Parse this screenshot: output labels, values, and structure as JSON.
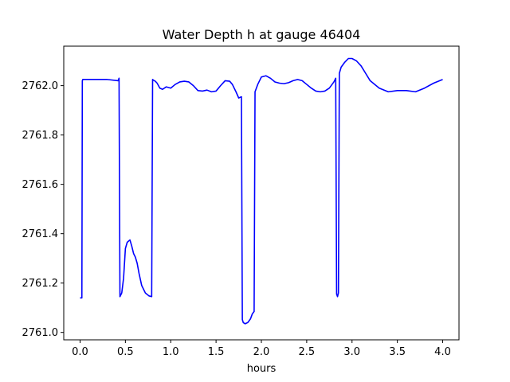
{
  "chart_data": {
    "type": "line",
    "title": "Water Depth h at gauge 46404",
    "xlabel": "hours",
    "ylabel": "",
    "xlim": [
      -0.18,
      4.18
    ],
    "ylim": [
      2760.97,
      2762.16
    ],
    "xticks": [
      0.0,
      0.5,
      1.0,
      1.5,
      2.0,
      2.5,
      3.0,
      3.5,
      4.0
    ],
    "xtick_labels": [
      "0.0",
      "0.5",
      "1.0",
      "1.5",
      "2.0",
      "2.5",
      "3.0",
      "3.5",
      "4.0"
    ],
    "yticks": [
      2761.0,
      2761.2,
      2761.4,
      2761.6,
      2761.8,
      2762.0
    ],
    "ytick_labels": [
      "2761.0",
      "2761.2",
      "2761.4",
      "2761.6",
      "2761.8",
      "2762.0"
    ],
    "grid": false,
    "legend": "none",
    "series": [
      {
        "color": "#0000ff",
        "x": [
          0.0,
          0.02,
          0.025,
          0.03,
          0.3,
          0.42,
          0.43,
          0.44,
          0.46,
          0.48,
          0.5,
          0.52,
          0.55,
          0.57,
          0.59,
          0.61,
          0.63,
          0.65,
          0.68,
          0.72,
          0.76,
          0.79,
          0.8,
          0.81,
          0.83,
          0.85,
          0.88,
          0.91,
          0.95,
          1.0,
          1.05,
          1.1,
          1.15,
          1.2,
          1.25,
          1.3,
          1.35,
          1.4,
          1.45,
          1.5,
          1.55,
          1.6,
          1.65,
          1.68,
          1.72,
          1.75,
          1.78,
          1.79,
          1.8,
          1.82,
          1.85,
          1.88,
          1.9,
          1.92,
          1.93,
          1.96,
          2.0,
          2.05,
          2.1,
          2.15,
          2.2,
          2.25,
          2.3,
          2.35,
          2.4,
          2.45,
          2.5,
          2.55,
          2.6,
          2.65,
          2.7,
          2.75,
          2.8,
          2.82,
          2.83,
          2.84,
          2.85,
          2.86,
          2.88,
          2.92,
          2.96,
          3.0,
          3.05,
          3.1,
          3.15,
          3.2,
          3.3,
          3.4,
          3.5,
          3.6,
          3.7,
          3.8,
          3.9,
          4.0
        ],
        "y": [
          2761.14,
          2761.14,
          2762.02,
          2762.025,
          2762.025,
          2762.02,
          2762.03,
          2761.145,
          2761.16,
          2761.22,
          2761.34,
          2761.365,
          2761.375,
          2761.35,
          2761.32,
          2761.305,
          2761.28,
          2761.24,
          2761.19,
          2761.16,
          2761.148,
          2761.145,
          2762.025,
          2762.022,
          2762.018,
          2762.01,
          2761.99,
          2761.985,
          2761.995,
          2761.99,
          2762.005,
          2762.015,
          2762.018,
          2762.015,
          2762.0,
          2761.98,
          2761.978,
          2761.982,
          2761.975,
          2761.978,
          2762.0,
          2762.02,
          2762.018,
          2762.005,
          2761.975,
          2761.95,
          2761.955,
          2761.052,
          2761.04,
          2761.035,
          2761.04,
          2761.055,
          2761.075,
          2761.085,
          2761.975,
          2762.005,
          2762.035,
          2762.04,
          2762.03,
          2762.015,
          2762.01,
          2762.008,
          2762.012,
          2762.02,
          2762.025,
          2762.02,
          2762.005,
          2761.99,
          2761.978,
          2761.975,
          2761.978,
          2761.99,
          2762.015,
          2762.03,
          2761.155,
          2761.145,
          2761.16,
          2762.05,
          2762.075,
          2762.095,
          2762.11,
          2762.11,
          2762.1,
          2762.08,
          2762.05,
          2762.02,
          2761.99,
          2761.975,
          2761.98,
          2761.98,
          2761.975,
          2761.99,
          2762.01,
          2762.025
        ]
      }
    ]
  }
}
